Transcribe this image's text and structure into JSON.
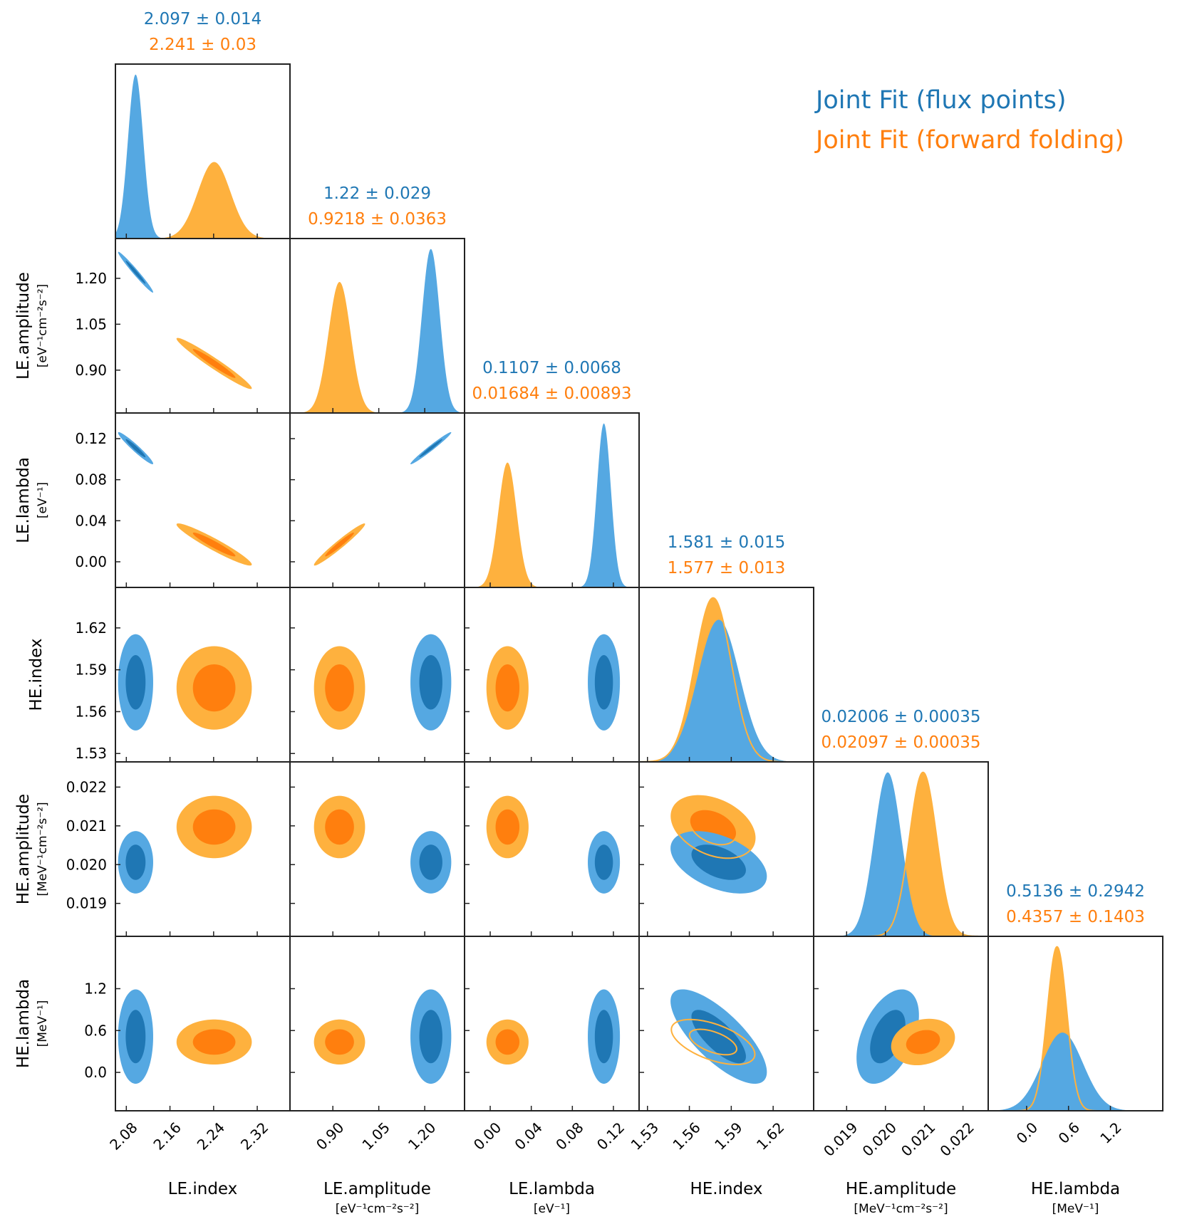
{
  "chart_data": {
    "type": "corner",
    "colors": {
      "flux_points": "#1f77b4",
      "forward_folding": "#ff7f0e"
    },
    "legend": [
      "Joint Fit (flux points)",
      "Joint Fit (forward folding)"
    ],
    "parameters": [
      {
        "name": "LE.index",
        "unit": "",
        "ticks": [
          "2.08",
          "2.16",
          "2.24",
          "2.32"
        ],
        "titles": [
          "2.097 ± 0.014",
          "2.241 ± 0.03"
        ]
      },
      {
        "name": "LE.amplitude",
        "unit": "[eV⁻¹cm⁻²s⁻²]",
        "ticks": [
          "0.90",
          "1.05",
          "1.20"
        ],
        "titles": [
          "1.22 ± 0.029",
          "0.9218 ± 0.0363"
        ]
      },
      {
        "name": "LE.lambda",
        "unit": "[eV⁻¹]",
        "ticks": [
          "0.00",
          "0.04",
          "0.08",
          "0.12"
        ],
        "titles": [
          "0.1107 ± 0.0068",
          "0.01684 ± 0.00893"
        ]
      },
      {
        "name": "HE.index",
        "unit": "",
        "ticks": [
          "1.53",
          "1.56",
          "1.59",
          "1.62"
        ],
        "titles": [
          "1.581 ± 0.015",
          "1.577 ± 0.013"
        ]
      },
      {
        "name": "HE.amplitude",
        "unit": "[MeV⁻¹cm⁻²s⁻²]",
        "ticks": [
          "0.019",
          "0.020",
          "0.021",
          "0.022"
        ],
        "titles": [
          "0.02006 ± 0.00035",
          "0.02097 ± 0.00035"
        ]
      },
      {
        "name": "HE.lambda",
        "unit": "[MeV⁻¹]",
        "ticks": [
          "0.0",
          "0.6",
          "1.2"
        ],
        "titles": [
          "0.5136 ± 0.2942",
          "0.4357 ± 0.1403"
        ]
      }
    ],
    "series": [
      {
        "name": "Joint Fit (flux points)",
        "means": [
          2.097,
          1.22,
          0.1107,
          1.581,
          0.02006,
          0.5136
        ],
        "sigmas": [
          0.014,
          0.029,
          0.0068,
          0.015,
          0.00035,
          0.2942
        ]
      },
      {
        "name": "Joint Fit (forward folding)",
        "means": [
          2.241,
          0.9218,
          0.01684,
          1.577,
          0.02097,
          0.4357
        ],
        "sigmas": [
          0.03,
          0.0363,
          0.00893,
          0.013,
          0.00035,
          0.1403
        ]
      }
    ]
  }
}
